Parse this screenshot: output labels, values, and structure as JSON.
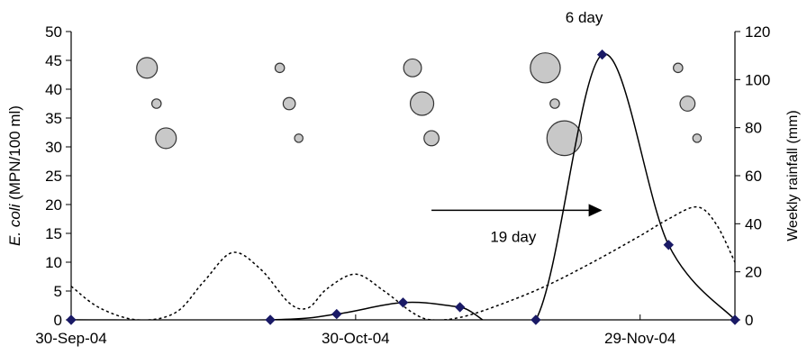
{
  "chart_data": {
    "type": "line",
    "xlabel": "",
    "ylabel_italic": "E. coli",
    "ylabel_rest": " (MPN/100 ml)",
    "y2label": "Weekly rainfall (mm)",
    "x_tick_labels": [
      "30-Sep-04",
      "30-Oct-04",
      "29-Nov-04"
    ],
    "x_tick_days": [
      0,
      30,
      60
    ],
    "x_range_days": [
      0,
      70
    ],
    "y_ticks": [
      0,
      5,
      10,
      15,
      20,
      25,
      30,
      35,
      40,
      45,
      50
    ],
    "ylim": [
      0,
      50
    ],
    "y2_ticks": [
      0,
      20,
      40,
      60,
      80,
      100,
      120
    ],
    "y2lim": [
      0,
      120
    ],
    "series": [
      {
        "label_note": "E. coli (solid line with diamond markers)",
        "axis": "left",
        "style": "solid",
        "color": "#000000",
        "marker_color": "#1a1a66",
        "points": [
          {
            "day": 0,
            "value": 0
          },
          {
            "day": 21,
            "value": 0
          },
          {
            "day": 28,
            "value": 1
          },
          {
            "day": 35,
            "value": 3
          },
          {
            "day": 41,
            "value": 2.2
          },
          {
            "day": 49,
            "value": 0
          },
          {
            "day": 56,
            "value": 46
          },
          {
            "day": 63,
            "value": 13
          },
          {
            "day": 70,
            "value": 0
          }
        ]
      },
      {
        "label_note": "Weekly rainfall (dotted line)",
        "axis": "right",
        "style": "dotted",
        "color": "#000000",
        "points": [
          {
            "day": 0,
            "value": 14
          },
          {
            "day": 3,
            "value": 5
          },
          {
            "day": 7,
            "value": 0
          },
          {
            "day": 11,
            "value": 3
          },
          {
            "day": 14,
            "value": 16
          },
          {
            "day": 17,
            "value": 28
          },
          {
            "day": 20,
            "value": 21
          },
          {
            "day": 23,
            "value": 7
          },
          {
            "day": 25,
            "value": 5
          },
          {
            "day": 27,
            "value": 13
          },
          {
            "day": 30,
            "value": 19
          },
          {
            "day": 33,
            "value": 12
          },
          {
            "day": 36,
            "value": 3
          },
          {
            "day": 38,
            "value": 0
          },
          {
            "day": 41,
            "value": 1
          },
          {
            "day": 45,
            "value": 6
          },
          {
            "day": 50,
            "value": 14
          },
          {
            "day": 55,
            "value": 24
          },
          {
            "day": 60,
            "value": 35
          },
          {
            "day": 63,
            "value": 42
          },
          {
            "day": 66,
            "value": 47
          },
          {
            "day": 68,
            "value": 40
          },
          {
            "day": 70,
            "value": 24
          }
        ]
      }
    ],
    "bubbles": [
      {
        "day": 8,
        "y": 43.7,
        "size": 2.2
      },
      {
        "day": 9,
        "y": 37.5,
        "size": 1.0
      },
      {
        "day": 10,
        "y": 31.5,
        "size": 2.2
      },
      {
        "day": 22,
        "y": 43.7,
        "size": 1.0
      },
      {
        "day": 23,
        "y": 37.5,
        "size": 1.3
      },
      {
        "day": 24,
        "y": 31.5,
        "size": 0.9
      },
      {
        "day": 36,
        "y": 43.7,
        "size": 1.9
      },
      {
        "day": 37,
        "y": 37.5,
        "size": 2.5
      },
      {
        "day": 38,
        "y": 31.5,
        "size": 1.6
      },
      {
        "day": 50,
        "y": 43.7,
        "size": 3.2
      },
      {
        "day": 51,
        "y": 37.5,
        "size": 1.0
      },
      {
        "day": 52,
        "y": 31.5,
        "size": 3.7
      },
      {
        "day": 64,
        "y": 43.7,
        "size": 1.0
      },
      {
        "day": 65,
        "y": 37.5,
        "size": 1.6
      },
      {
        "day": 66,
        "y": 31.5,
        "size": 0.9
      }
    ],
    "annotations": {
      "top_label": "6 day",
      "arrow_label": "19 day",
      "arrow_from_day": 38,
      "arrow_to_day": 56,
      "arrow_y": 19
    },
    "colors": {
      "bubble_fill": "#c8c8c8",
      "bubble_stroke": "#333333",
      "marker": "#1a1a66"
    }
  }
}
